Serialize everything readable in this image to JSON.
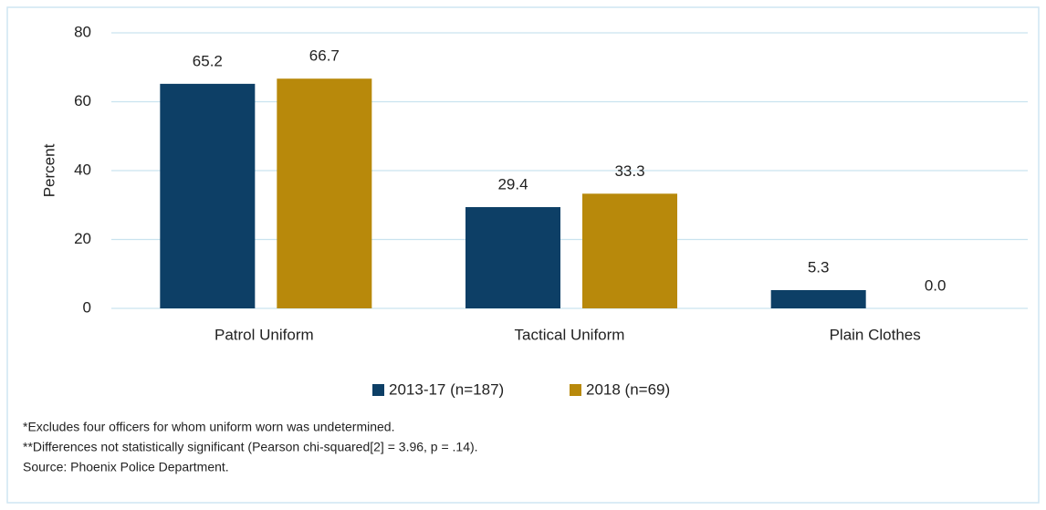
{
  "chart_data": {
    "type": "bar",
    "categories": [
      "Patrol Uniform",
      "Tactical Uniform",
      "Plain Clothes"
    ],
    "series": [
      {
        "name": "2013-17 (n=187)",
        "color": "#0d3f66",
        "values": [
          65.2,
          29.4,
          5.3
        ],
        "value_labels": [
          "65.2",
          "29.4",
          "5.3"
        ]
      },
      {
        "name": "2018 (n=69)",
        "color": "#b8890b",
        "values": [
          66.7,
          33.3,
          0.0
        ],
        "value_labels": [
          "66.7",
          "33.3",
          "0.0"
        ]
      }
    ],
    "y_label": "Percent",
    "ylim": [
      0,
      80
    ],
    "yticks": [
      0,
      20,
      40,
      60,
      80
    ],
    "grid": true,
    "legend": "bottom",
    "notes": [
      "*Excludes four officers for whom uniform worn was undetermined.",
      "**Differences not statistically significant (Pearson chi-squared[2] = 3.96, p = .14).",
      "Source: Phoenix Police Department."
    ]
  }
}
